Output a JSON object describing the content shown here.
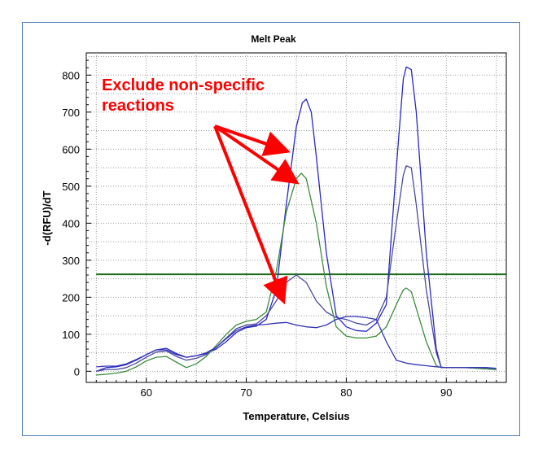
{
  "chart_data": {
    "type": "line",
    "title": "Melt Peak",
    "xlabel": "Temperature, Celsius",
    "ylabel": "-d(RFU)/dT",
    "xlim": [
      54,
      96
    ],
    "ylim": [
      -30,
      860
    ],
    "xticks": [
      60,
      70,
      80,
      90
    ],
    "yticks": [
      0,
      100,
      200,
      300,
      400,
      500,
      600,
      700,
      800
    ],
    "grid": true,
    "threshold": {
      "value": 262,
      "x": [
        55,
        96
      ],
      "color": "#1e6b1e"
    },
    "series": [
      {
        "color": "#2828c8",
        "points": [
          [
            55,
            0
          ],
          [
            56,
            10
          ],
          [
            57,
            12
          ],
          [
            58,
            18
          ],
          [
            59,
            30
          ],
          [
            60,
            45
          ],
          [
            61,
            58
          ],
          [
            62,
            62
          ],
          [
            63,
            48
          ],
          [
            64,
            38
          ],
          [
            65,
            42
          ],
          [
            66,
            48
          ],
          [
            67,
            60
          ],
          [
            68,
            80
          ],
          [
            69,
            105
          ],
          [
            70,
            118
          ],
          [
            71,
            122
          ],
          [
            72,
            140
          ],
          [
            73,
            220
          ],
          [
            74,
            450
          ],
          [
            75,
            660
          ],
          [
            75.6,
            725
          ],
          [
            76,
            735
          ],
          [
            76.5,
            700
          ],
          [
            77,
            580
          ],
          [
            78,
            320
          ],
          [
            79,
            150
          ],
          [
            80,
            120
          ],
          [
            81,
            110
          ],
          [
            82,
            108
          ],
          [
            83,
            130
          ],
          [
            84,
            180
          ],
          [
            85,
            550
          ],
          [
            85.7,
            790
          ],
          [
            86,
            822
          ],
          [
            86.5,
            815
          ],
          [
            87,
            700
          ],
          [
            88,
            320
          ],
          [
            89,
            60
          ],
          [
            89.5,
            10
          ],
          [
            90,
            10
          ],
          [
            92,
            10
          ],
          [
            94,
            10
          ],
          [
            95,
            5
          ]
        ]
      },
      {
        "color": "#4a4aa0",
        "points": [
          [
            55,
            0
          ],
          [
            56,
            5
          ],
          [
            57,
            5
          ],
          [
            58,
            10
          ],
          [
            59,
            22
          ],
          [
            60,
            38
          ],
          [
            61,
            52
          ],
          [
            62,
            55
          ],
          [
            63,
            40
          ],
          [
            64,
            30
          ],
          [
            65,
            35
          ],
          [
            66,
            45
          ],
          [
            67,
            65
          ],
          [
            68,
            90
          ],
          [
            69,
            115
          ],
          [
            70,
            125
          ],
          [
            71,
            128
          ],
          [
            72,
            150
          ],
          [
            73,
            190
          ],
          [
            74,
            240
          ],
          [
            75,
            260
          ],
          [
            76,
            240
          ],
          [
            77,
            190
          ],
          [
            78,
            160
          ],
          [
            79,
            145
          ],
          [
            80,
            140
          ],
          [
            81,
            130
          ],
          [
            82,
            125
          ],
          [
            83,
            140
          ],
          [
            84,
            200
          ],
          [
            85,
            400
          ],
          [
            85.7,
            530
          ],
          [
            86,
            555
          ],
          [
            86.5,
            550
          ],
          [
            87,
            450
          ],
          [
            88,
            220
          ],
          [
            89,
            50
          ],
          [
            89.5,
            10
          ],
          [
            92,
            10
          ],
          [
            95,
            5
          ]
        ]
      },
      {
        "color": "#3c8c3c",
        "points": [
          [
            55,
            -10
          ],
          [
            56,
            -8
          ],
          [
            57,
            -5
          ],
          [
            58,
            0
          ],
          [
            59,
            12
          ],
          [
            60,
            28
          ],
          [
            61,
            38
          ],
          [
            62,
            40
          ],
          [
            63,
            25
          ],
          [
            64,
            10
          ],
          [
            65,
            20
          ],
          [
            66,
            40
          ],
          [
            67,
            70
          ],
          [
            68,
            100
          ],
          [
            69,
            125
          ],
          [
            70,
            135
          ],
          [
            71,
            140
          ],
          [
            72,
            160
          ],
          [
            73,
            270
          ],
          [
            74,
            430
          ],
          [
            75,
            520
          ],
          [
            75.5,
            535
          ],
          [
            76,
            520
          ],
          [
            77,
            400
          ],
          [
            78,
            230
          ],
          [
            79,
            120
          ],
          [
            80,
            95
          ],
          [
            81,
            90
          ],
          [
            82,
            90
          ],
          [
            83,
            95
          ],
          [
            84,
            120
          ],
          [
            85,
            180
          ],
          [
            85.7,
            220
          ],
          [
            86,
            225
          ],
          [
            86.5,
            215
          ],
          [
            87,
            170
          ],
          [
            88,
            80
          ],
          [
            89,
            15
          ],
          [
            89.5,
            10
          ],
          [
            92,
            10
          ],
          [
            95,
            5
          ]
        ]
      },
      {
        "color": "#3434b8",
        "points": [
          [
            55,
            12
          ],
          [
            56,
            14
          ],
          [
            57,
            14
          ],
          [
            58,
            20
          ],
          [
            59,
            32
          ],
          [
            60,
            45
          ],
          [
            61,
            58
          ],
          [
            62,
            58
          ],
          [
            63,
            45
          ],
          [
            64,
            38
          ],
          [
            65,
            42
          ],
          [
            66,
            50
          ],
          [
            67,
            65
          ],
          [
            68,
            88
          ],
          [
            69,
            110
          ],
          [
            70,
            120
          ],
          [
            71,
            125
          ],
          [
            72,
            127
          ],
          [
            73,
            130
          ],
          [
            74,
            132
          ],
          [
            75,
            125
          ],
          [
            76,
            120
          ],
          [
            77,
            118
          ],
          [
            78,
            125
          ],
          [
            79,
            140
          ],
          [
            80,
            148
          ],
          [
            81,
            148
          ],
          [
            82,
            145
          ],
          [
            83,
            140
          ],
          [
            84,
            80
          ],
          [
            85,
            30
          ],
          [
            86,
            22
          ],
          [
            87,
            18
          ],
          [
            88,
            15
          ],
          [
            89,
            12
          ],
          [
            90,
            10
          ],
          [
            92,
            10
          ],
          [
            94,
            10
          ],
          [
            95,
            8
          ]
        ]
      }
    ],
    "annotation": {
      "lines": [
        "Exclude non-specific",
        "reactions"
      ],
      "arrow_targets": [
        [
          73.5,
          600
        ],
        [
          74.5,
          520
        ],
        [
          73.5,
          205
        ]
      ]
    }
  }
}
